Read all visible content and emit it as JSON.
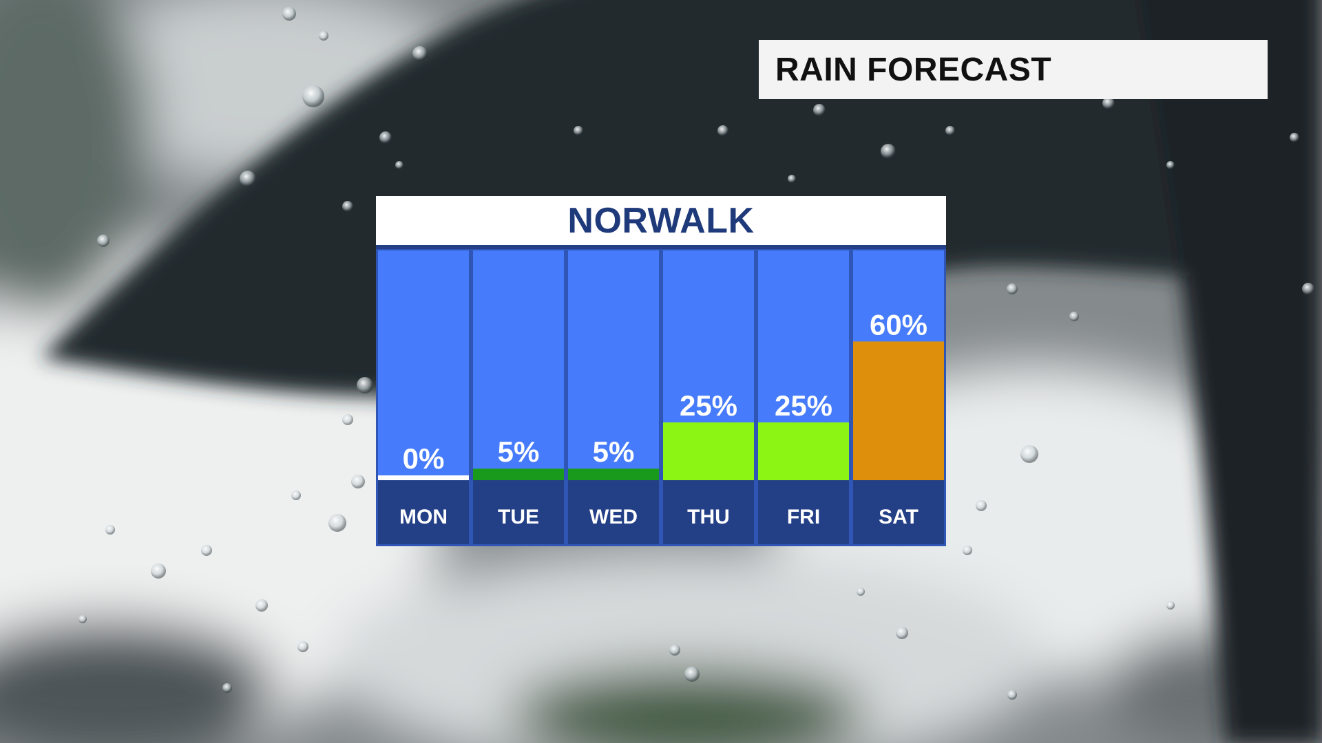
{
  "header": {
    "title": "RAIN FORECAST"
  },
  "panel": {
    "location": "NORWALK"
  },
  "chart_data": {
    "type": "bar",
    "title": "NORWALK",
    "unit": "%",
    "categories": [
      "MON",
      "TUE",
      "WED",
      "THU",
      "FRI",
      "SAT"
    ],
    "values": [
      0,
      5,
      5,
      25,
      25,
      60
    ],
    "value_labels": [
      "0%",
      "5%",
      "5%",
      "25%",
      "25%",
      "60%"
    ],
    "ylim": [
      0,
      100
    ],
    "grid": false,
    "colors": {
      "column_background": "#467cfb",
      "day_box": "#233f86",
      "panel_border": "#2f55b5",
      "bar_0": "#ffffff",
      "bar_low": "#1a9a1c",
      "bar_mid": "#8cf514",
      "bar_high": "#de900c",
      "label_text": "#ffffff"
    },
    "bar_colors": [
      "bar_0",
      "bar_low",
      "bar_low",
      "bar_mid",
      "bar_mid",
      "bar_high"
    ]
  }
}
